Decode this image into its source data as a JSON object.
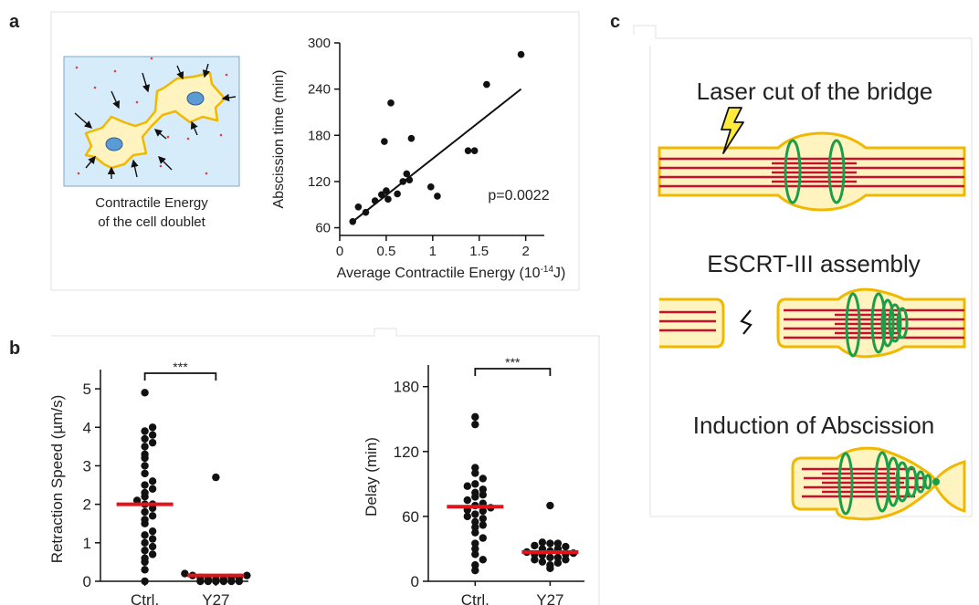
{
  "panels": {
    "a": {
      "letter": "a",
      "caption_line1": "Contractile Energy",
      "caption_line2": "of the cell doublet",
      "chart": {
        "type": "scatter",
        "xlabel_main": "Average Contractile Energy (10",
        "xlabel_exp": "-14",
        "xlabel_unit": "J)",
        "ylabel": "Abscission time (min)",
        "xlim": [
          0,
          2.2
        ],
        "ylim": [
          50,
          300
        ],
        "xticks": [
          0,
          0.5,
          1,
          1.5,
          2
        ],
        "xtick_labels": [
          "0",
          "0.5",
          "1",
          "1.5",
          "2"
        ],
        "yticks": [
          60,
          120,
          180,
          240,
          300
        ],
        "annotation": "p=0.0022",
        "points": [
          [
            0.14,
            68
          ],
          [
            0.2,
            87
          ],
          [
            0.28,
            80
          ],
          [
            0.38,
            95
          ],
          [
            0.45,
            103
          ],
          [
            0.5,
            108
          ],
          [
            0.52,
            97
          ],
          [
            0.55,
            222
          ],
          [
            0.48,
            172
          ],
          [
            0.62,
            104
          ],
          [
            0.68,
            120
          ],
          [
            0.72,
            130
          ],
          [
            0.75,
            122
          ],
          [
            0.77,
            176
          ],
          [
            0.98,
            113
          ],
          [
            1.05,
            101
          ],
          [
            1.38,
            160
          ],
          [
            1.45,
            160
          ],
          [
            1.58,
            246
          ],
          [
            1.95,
            285
          ]
        ],
        "fit": [
          [
            0.14,
            68
          ],
          [
            1.95,
            240
          ]
        ]
      }
    },
    "b": {
      "letter": "b",
      "charts": [
        {
          "type": "scatter",
          "ylabel": "Retraction Speed (µm/s)",
          "categories": [
            "Ctrl.",
            "Y27"
          ],
          "ylim": [
            0,
            5.5
          ],
          "yticks": [
            0,
            1,
            2,
            3,
            4,
            5
          ],
          "significance": "***",
          "means": [
            2.0,
            0.15
          ],
          "groups": [
            [
              0.0,
              0.3,
              0.5,
              0.6,
              0.7,
              0.8,
              0.9,
              1.0,
              1.1,
              1.2,
              1.3,
              1.5,
              1.6,
              1.7,
              1.8,
              1.9,
              2.0,
              2.0,
              2.1,
              2.2,
              2.3,
              2.4,
              2.5,
              2.6,
              2.8,
              3.0,
              3.2,
              3.3,
              3.5,
              3.6,
              3.7,
              3.8,
              3.9,
              4.0,
              4.9
            ],
            [
              0.0,
              0.0,
              0.0,
              0.0,
              0.0,
              0.0,
              0.05,
              0.05,
              0.05,
              0.1,
              0.1,
              0.1,
              0.15,
              0.15,
              0.2,
              2.7
            ]
          ]
        },
        {
          "type": "scatter",
          "ylabel": "Delay (min)",
          "categories": [
            "Ctrl.",
            "Y27"
          ],
          "ylim": [
            0,
            200
          ],
          "yticks": [
            0,
            60,
            120,
            180
          ],
          "significance": "***",
          "means": [
            69,
            27
          ],
          "groups": [
            [
              10,
              15,
              20,
              25,
              30,
              35,
              40,
              45,
              50,
              52,
              55,
              58,
              60,
              62,
              65,
              66,
              68,
              70,
              72,
              75,
              78,
              80,
              82,
              85,
              88,
              90,
              95,
              100,
              105,
              145,
              152
            ],
            [
              12,
              15,
              17,
              18,
              20,
              20,
              22,
              22,
              24,
              25,
              25,
              26,
              27,
              28,
              30,
              30,
              32,
              33,
              35,
              35,
              36,
              70
            ]
          ]
        }
      ]
    },
    "c": {
      "letter": "c",
      "step1": "Laser cut of the bridge",
      "step2": "ESCRT-III assembly",
      "step3": "Induction of Abscission"
    }
  },
  "colors": {
    "cell_yellow": "#fff3c0",
    "cell_outline": "#f0b800",
    "microtubule_red": "#c8102e",
    "escrt_green": "#1a9e4a",
    "background_blue": "#d6ecfa",
    "mean_line_red": "#e0151b",
    "laser_bolt": "#ffeb3b"
  }
}
